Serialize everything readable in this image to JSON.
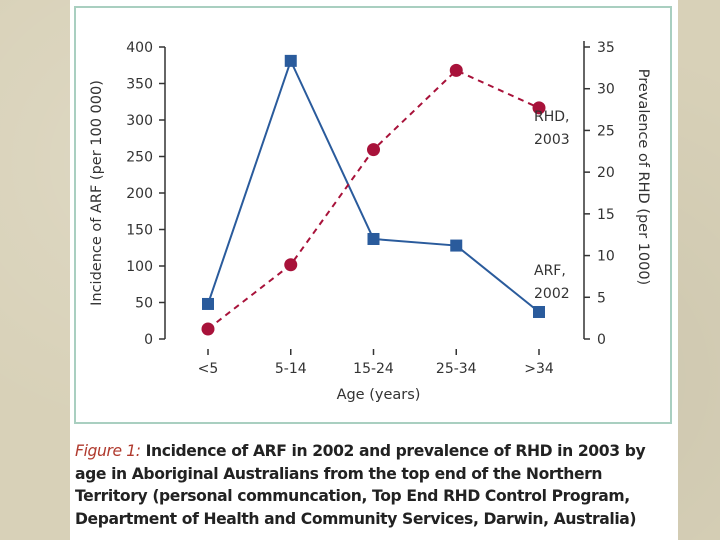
{
  "colors": {
    "arf": "#2a5b9c",
    "rhd": "#a8123a",
    "axis": "#333333",
    "caption_label": "#b03a2e",
    "frame": "#a9cfc0"
  },
  "chart_data": {
    "type": "line",
    "categories": [
      "<5",
      "5-14",
      "15-24",
      "25-34",
      ">34"
    ],
    "xlabel": "Age (years)",
    "series": [
      {
        "name": "ARF, 2002",
        "label_lines": [
          "ARF,",
          "2002"
        ],
        "axis": "left",
        "marker": "square",
        "line_style": "solid",
        "values": [
          48,
          381,
          137,
          128,
          37
        ]
      },
      {
        "name": "RHD, 2003",
        "label_lines": [
          "RHD,",
          "2003"
        ],
        "axis": "right",
        "marker": "circle",
        "line_style": "dashed",
        "values": [
          1.2,
          8.9,
          22.7,
          32.2,
          27.7
        ]
      }
    ],
    "left_axis": {
      "label": "Incidence of ARF (per 100 000)",
      "ylim": [
        0,
        400
      ],
      "ticks": [
        0,
        50,
        100,
        150,
        200,
        250,
        300,
        350,
        400
      ]
    },
    "right_axis": {
      "label": "Prevalence of RHD (per 1000)",
      "ylim": [
        0,
        35
      ],
      "ticks": [
        0,
        5,
        10,
        15,
        20,
        25,
        30,
        35
      ]
    }
  },
  "caption": {
    "label": "Figure 1:",
    "text": "Incidence of ARF in 2002 and prevalence of RHD in 2003 by age in Aboriginal Australians from the top end of the Northern Territory (personal communcation, Top End RHD Control Program, Department of Health and Community Services, Darwin, Australia)"
  }
}
